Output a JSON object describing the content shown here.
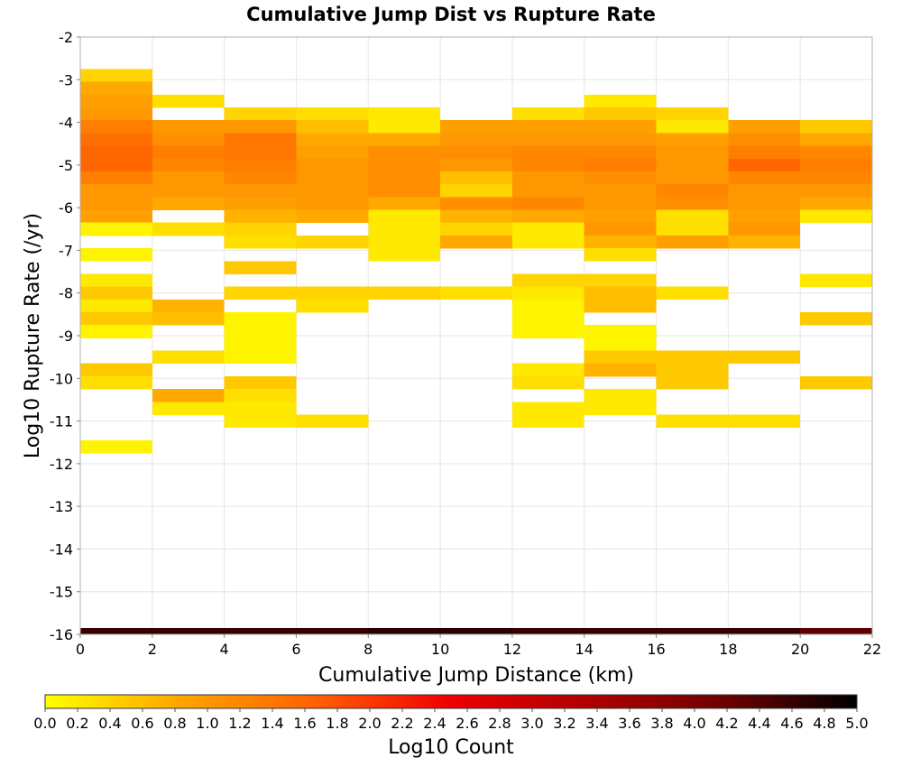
{
  "chart_data": {
    "type": "heatmap",
    "title": "Cumulative Jump Dist vs Rupture Rate",
    "xlabel": "Cumulative Jump Distance (km)",
    "ylabel": "Log10 Rupture Rate (/yr)",
    "colorbar_label": "Log10 Count",
    "xlim": [
      0,
      22
    ],
    "ylim": [
      -16,
      -2
    ],
    "xticks": [
      0,
      2,
      4,
      6,
      8,
      10,
      12,
      14,
      16,
      18,
      20,
      22
    ],
    "yticks": [
      -2,
      -3,
      -4,
      -5,
      -6,
      -7,
      -8,
      -9,
      -10,
      -11,
      -12,
      -13,
      -14,
      -15,
      -16
    ],
    "colorbar_range": [
      0.0,
      5.0
    ],
    "colorbar_ticks": [
      "0.0",
      "0.2",
      "0.4",
      "0.6",
      "0.8",
      "1.0",
      "1.2",
      "1.4",
      "1.6",
      "1.8",
      "2.0",
      "2.2",
      "2.4",
      "2.6",
      "2.8",
      "3.0",
      "3.2",
      "3.4",
      "3.6",
      "3.8",
      "4.0",
      "4.2",
      "4.4",
      "4.6",
      "4.8",
      "5.0"
    ],
    "colormap": [
      "#ffff00",
      "#ffa500",
      "#ff6000",
      "#ee0000",
      "#b00000",
      "#700000",
      "#000000"
    ],
    "grid": true,
    "x_bin_width": 2,
    "y_bin_height": 0.3,
    "columns": [
      {
        "x": 1,
        "cells": [
          [
            -2.9,
            0.4
          ],
          [
            -3.2,
            0.8
          ],
          [
            -3.5,
            0.9
          ],
          [
            -3.8,
            1.0
          ],
          [
            -4.1,
            1.3
          ],
          [
            -4.4,
            1.5
          ],
          [
            -4.7,
            1.6
          ],
          [
            -5.0,
            1.6
          ],
          [
            -5.3,
            1.3
          ],
          [
            -5.6,
            1.0
          ],
          [
            -5.9,
            1.0
          ],
          [
            -6.2,
            0.9
          ],
          [
            -6.5,
            0.1
          ],
          [
            -7.1,
            0.1
          ],
          [
            -7.7,
            0.2
          ],
          [
            -8.0,
            0.5
          ],
          [
            -8.3,
            0.2
          ],
          [
            -8.6,
            0.5
          ],
          [
            -8.9,
            0.1
          ],
          [
            -9.8,
            0.5
          ],
          [
            -10.1,
            0.3
          ],
          [
            -11.6,
            0.1
          ]
        ]
      },
      {
        "x": 3,
        "cells": [
          [
            -3.5,
            0.3
          ],
          [
            -4.1,
            1.0
          ],
          [
            -4.4,
            1.1
          ],
          [
            -4.7,
            1.3
          ],
          [
            -5.0,
            1.2
          ],
          [
            -5.3,
            1.0
          ],
          [
            -5.6,
            1.0
          ],
          [
            -5.9,
            0.8
          ],
          [
            -6.5,
            0.3
          ],
          [
            -8.3,
            0.7
          ],
          [
            -8.6,
            0.6
          ],
          [
            -9.5,
            0.3
          ],
          [
            -10.4,
            0.8
          ],
          [
            -10.7,
            0.2
          ]
        ]
      },
      {
        "x": 5,
        "cells": [
          [
            -3.8,
            0.4
          ],
          [
            -4.1,
            1.0
          ],
          [
            -4.4,
            1.4
          ],
          [
            -4.7,
            1.4
          ],
          [
            -5.0,
            1.3
          ],
          [
            -5.3,
            1.2
          ],
          [
            -5.6,
            1.0
          ],
          [
            -5.9,
            0.9
          ],
          [
            -6.2,
            0.7
          ],
          [
            -6.5,
            0.4
          ],
          [
            -6.8,
            0.3
          ],
          [
            -7.4,
            0.5
          ],
          [
            -8.0,
            0.4
          ],
          [
            -8.6,
            0.1
          ],
          [
            -8.9,
            0.1
          ],
          [
            -9.2,
            0.1
          ],
          [
            -9.5,
            0.1
          ],
          [
            -10.1,
            0.5
          ],
          [
            -10.4,
            0.3
          ],
          [
            -10.7,
            0.2
          ],
          [
            -11.0,
            0.2
          ]
        ]
      },
      {
        "x": 7,
        "cells": [
          [
            -3.8,
            0.3
          ],
          [
            -4.1,
            0.6
          ],
          [
            -4.4,
            0.8
          ],
          [
            -4.7,
            0.9
          ],
          [
            -5.0,
            1.0
          ],
          [
            -5.3,
            1.0
          ],
          [
            -5.6,
            1.0
          ],
          [
            -5.9,
            1.0
          ],
          [
            -6.2,
            0.8
          ],
          [
            -6.8,
            0.4
          ],
          [
            -8.0,
            0.4
          ],
          [
            -8.3,
            0.3
          ],
          [
            -11.0,
            0.3
          ]
        ]
      },
      {
        "x": 9,
        "cells": [
          [
            -3.8,
            0.2
          ],
          [
            -4.1,
            0.2
          ],
          [
            -4.4,
            0.8
          ],
          [
            -4.7,
            1.1
          ],
          [
            -5.0,
            1.1
          ],
          [
            -5.3,
            1.1
          ],
          [
            -5.6,
            1.1
          ],
          [
            -5.9,
            0.8
          ],
          [
            -6.2,
            0.2
          ],
          [
            -6.5,
            0.2
          ],
          [
            -6.8,
            0.2
          ],
          [
            -7.1,
            0.2
          ],
          [
            -8.0,
            0.4
          ]
        ]
      },
      {
        "x": 11,
        "cells": [
          [
            -4.1,
            0.9
          ],
          [
            -4.4,
            1.0
          ],
          [
            -4.7,
            1.1
          ],
          [
            -5.0,
            1.0
          ],
          [
            -5.3,
            0.6
          ],
          [
            -5.6,
            0.4
          ],
          [
            -5.9,
            1.1
          ],
          [
            -6.2,
            0.7
          ],
          [
            -6.5,
            0.4
          ],
          [
            -6.8,
            0.8
          ],
          [
            -8.0,
            0.3
          ]
        ]
      },
      {
        "x": 13,
        "cells": [
          [
            -3.8,
            0.3
          ],
          [
            -4.1,
            0.9
          ],
          [
            -4.4,
            1.0
          ],
          [
            -4.7,
            1.2
          ],
          [
            -5.0,
            1.2
          ],
          [
            -5.3,
            1.0
          ],
          [
            -5.6,
            1.0
          ],
          [
            -5.9,
            1.2
          ],
          [
            -6.2,
            0.8
          ],
          [
            -6.5,
            0.2
          ],
          [
            -6.8,
            0.2
          ],
          [
            -7.7,
            0.4
          ],
          [
            -8.0,
            0.2
          ],
          [
            -8.3,
            0.1
          ],
          [
            -8.6,
            0.1
          ],
          [
            -8.9,
            0.1
          ],
          [
            -9.8,
            0.2
          ],
          [
            -10.1,
            0.3
          ],
          [
            -10.7,
            0.2
          ],
          [
            -11.0,
            0.2
          ]
        ]
      },
      {
        "x": 15,
        "cells": [
          [
            -3.5,
            0.2
          ],
          [
            -3.8,
            0.5
          ],
          [
            -4.1,
            0.9
          ],
          [
            -4.4,
            1.0
          ],
          [
            -4.7,
            1.2
          ],
          [
            -5.0,
            1.3
          ],
          [
            -5.3,
            1.1
          ],
          [
            -5.6,
            1.0
          ],
          [
            -5.9,
            1.0
          ],
          [
            -6.2,
            0.9
          ],
          [
            -6.5,
            1.0
          ],
          [
            -6.8,
            0.7
          ],
          [
            -7.1,
            0.3
          ],
          [
            -7.7,
            0.4
          ],
          [
            -8.0,
            0.6
          ],
          [
            -8.3,
            0.6
          ],
          [
            -8.9,
            0.1
          ],
          [
            -9.2,
            0.1
          ],
          [
            -9.5,
            0.5
          ],
          [
            -9.8,
            0.7
          ],
          [
            -10.4,
            0.2
          ],
          [
            -10.7,
            0.2
          ]
        ]
      },
      {
        "x": 17,
        "cells": [
          [
            -3.8,
            0.4
          ],
          [
            -4.1,
            0.2
          ],
          [
            -4.4,
            0.9
          ],
          [
            -4.7,
            1.0
          ],
          [
            -5.0,
            1.0
          ],
          [
            -5.3,
            1.0
          ],
          [
            -5.6,
            1.2
          ],
          [
            -5.9,
            1.1
          ],
          [
            -6.2,
            0.3
          ],
          [
            -6.5,
            0.3
          ],
          [
            -6.8,
            0.9
          ],
          [
            -8.0,
            0.3
          ],
          [
            -9.5,
            0.5
          ],
          [
            -9.8,
            0.5
          ],
          [
            -10.1,
            0.5
          ],
          [
            -11.0,
            0.3
          ]
        ]
      },
      {
        "x": 19,
        "cells": [
          [
            -4.1,
            0.9
          ],
          [
            -4.4,
            1.1
          ],
          [
            -4.7,
            1.3
          ],
          [
            -5.0,
            1.6
          ],
          [
            -5.3,
            1.2
          ],
          [
            -5.6,
            1.0
          ],
          [
            -5.9,
            1.0
          ],
          [
            -6.2,
            0.9
          ],
          [
            -6.5,
            1.0
          ],
          [
            -6.8,
            0.7
          ],
          [
            -9.5,
            0.5
          ],
          [
            -11.0,
            0.3
          ]
        ]
      },
      {
        "x": 21,
        "cells": [
          [
            -4.1,
            0.5
          ],
          [
            -4.4,
            0.8
          ],
          [
            -4.7,
            1.2
          ],
          [
            -5.0,
            1.3
          ],
          [
            -5.3,
            1.2
          ],
          [
            -5.6,
            1.0
          ],
          [
            -5.9,
            0.8
          ],
          [
            -6.2,
            0.2
          ],
          [
            -7.7,
            0.2
          ],
          [
            -8.6,
            0.5
          ],
          [
            -10.1,
            0.5
          ]
        ]
      }
    ],
    "bottom_row": {
      "y": -16,
      "values": [
        4.6,
        4.6,
        4.6,
        4.6,
        4.7,
        4.7,
        4.6,
        4.6,
        4.6,
        4.6,
        4.3
      ]
    }
  }
}
